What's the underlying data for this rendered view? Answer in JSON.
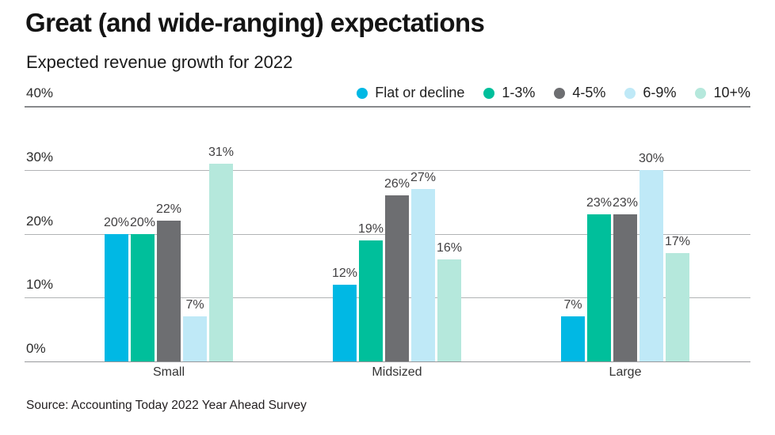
{
  "header": {
    "title": "Great (and wide-ranging) expectations",
    "subtitle": "Expected revenue growth for 2022"
  },
  "source": "Source: Accounting Today 2022 Year Ahead Survey",
  "colors": {
    "gridline": "#b1b3b5",
    "gridline_top": "#87898c",
    "baseline": "#97999c",
    "value_label": "#414042"
  },
  "chart_data": {
    "type": "bar",
    "title": "Great (and wide-ranging) expectations",
    "subtitle": "Expected revenue growth for 2022",
    "categories": [
      "Small",
      "Midsized",
      "Large"
    ],
    "series": [
      {
        "name": "Flat or decline",
        "color": "#00b8e4",
        "values": [
          20,
          12,
          7
        ]
      },
      {
        "name": "1-3%",
        "color": "#00bf9b",
        "values": [
          20,
          19,
          23
        ]
      },
      {
        "name": "4-5%",
        "color": "#6d6e71",
        "values": [
          22,
          26,
          23
        ]
      },
      {
        "name": "6-9%",
        "color": "#bfe9f7",
        "values": [
          7,
          27,
          30
        ]
      },
      {
        "name": "10+%",
        "color": "#b5e8dc",
        "values": [
          31,
          16,
          17
        ]
      }
    ],
    "ylim": [
      0,
      40
    ],
    "yticks": [
      "40%",
      "30%",
      "20%",
      "10%",
      "0%"
    ],
    "value_label_suffix": "%",
    "legend_position": "top-right",
    "grid": true
  }
}
